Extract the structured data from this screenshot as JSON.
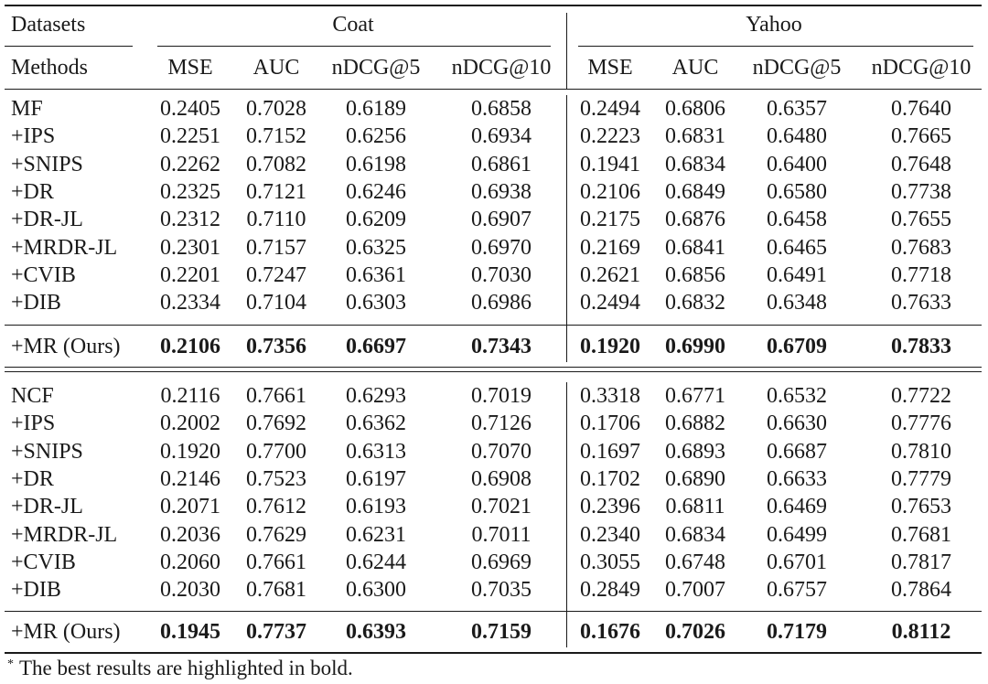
{
  "header": {
    "datasets_label": "Datasets",
    "methods_label": "Methods",
    "groups": [
      "Coat",
      "Yahoo"
    ],
    "metrics": [
      "MSE",
      "AUC",
      "nDCG@5",
      "nDCG@10"
    ]
  },
  "blocks": [
    {
      "rows": [
        {
          "method": "MF",
          "coat": [
            "0.2405",
            "0.7028",
            "0.6189",
            "0.6858"
          ],
          "yahoo": [
            "0.2494",
            "0.6806",
            "0.6357",
            "0.7640"
          ]
        },
        {
          "method": "+IPS",
          "coat": [
            "0.2251",
            "0.7152",
            "0.6256",
            "0.6934"
          ],
          "yahoo": [
            "0.2223",
            "0.6831",
            "0.6480",
            "0.7665"
          ]
        },
        {
          "method": "+SNIPS",
          "coat": [
            "0.2262",
            "0.7082",
            "0.6198",
            "0.6861"
          ],
          "yahoo": [
            "0.1941",
            "0.6834",
            "0.6400",
            "0.7648"
          ]
        },
        {
          "method": "+DR",
          "coat": [
            "0.2325",
            "0.7121",
            "0.6246",
            "0.6938"
          ],
          "yahoo": [
            "0.2106",
            "0.6849",
            "0.6580",
            "0.7738"
          ]
        },
        {
          "method": "+DR-JL",
          "coat": [
            "0.2312",
            "0.7110",
            "0.6209",
            "0.6907"
          ],
          "yahoo": [
            "0.2175",
            "0.6876",
            "0.6458",
            "0.7655"
          ]
        },
        {
          "method": "+MRDR-JL",
          "coat": [
            "0.2301",
            "0.7157",
            "0.6325",
            "0.6970"
          ],
          "yahoo": [
            "0.2169",
            "0.6841",
            "0.6465",
            "0.7683"
          ]
        },
        {
          "method": "+CVIB",
          "coat": [
            "0.2201",
            "0.7247",
            "0.6361",
            "0.7030"
          ],
          "yahoo": [
            "0.2621",
            "0.6856",
            "0.6491",
            "0.7718"
          ]
        },
        {
          "method": "+DIB",
          "coat": [
            "0.2334",
            "0.7104",
            "0.6303",
            "0.6986"
          ],
          "yahoo": [
            "0.2494",
            "0.6832",
            "0.6348",
            "0.7633"
          ]
        }
      ],
      "ours": {
        "method": "+MR (Ours)",
        "coat": [
          "0.2106",
          "0.7356",
          "0.6697",
          "0.7343"
        ],
        "yahoo": [
          "0.1920",
          "0.6990",
          "0.6709",
          "0.7833"
        ]
      }
    },
    {
      "rows": [
        {
          "method": "NCF",
          "coat": [
            "0.2116",
            "0.7661",
            "0.6293",
            "0.7019"
          ],
          "yahoo": [
            "0.3318",
            "0.6771",
            "0.6532",
            "0.7722"
          ]
        },
        {
          "method": "+IPS",
          "coat": [
            "0.2002",
            "0.7692",
            "0.6362",
            "0.7126"
          ],
          "yahoo": [
            "0.1706",
            "0.6882",
            "0.6630",
            "0.7776"
          ]
        },
        {
          "method": "+SNIPS",
          "coat": [
            "0.1920",
            "0.7700",
            "0.6313",
            "0.7070"
          ],
          "yahoo": [
            "0.1697",
            "0.6893",
            "0.6687",
            "0.7810"
          ]
        },
        {
          "method": "+DR",
          "coat": [
            "0.2146",
            "0.7523",
            "0.6197",
            "0.6908"
          ],
          "yahoo": [
            "0.1702",
            "0.6890",
            "0.6633",
            "0.7779"
          ]
        },
        {
          "method": "+DR-JL",
          "coat": [
            "0.2071",
            "0.7612",
            "0.6193",
            "0.7021"
          ],
          "yahoo": [
            "0.2396",
            "0.6811",
            "0.6469",
            "0.7653"
          ]
        },
        {
          "method": "+MRDR-JL",
          "coat": [
            "0.2036",
            "0.7629",
            "0.6231",
            "0.7011"
          ],
          "yahoo": [
            "0.2340",
            "0.6834",
            "0.6499",
            "0.7681"
          ]
        },
        {
          "method": "+CVIB",
          "coat": [
            "0.2060",
            "0.7661",
            "0.6244",
            "0.6969"
          ],
          "yahoo": [
            "0.3055",
            "0.6748",
            "0.6701",
            "0.7817"
          ]
        },
        {
          "method": "+DIB",
          "coat": [
            "0.2030",
            "0.7681",
            "0.6300",
            "0.7035"
          ],
          "yahoo": [
            "0.2849",
            "0.7007",
            "0.6757",
            "0.7864"
          ]
        }
      ],
      "ours": {
        "method": "+MR (Ours)",
        "coat": [
          "0.1945",
          "0.7737",
          "0.6393",
          "0.7159"
        ],
        "yahoo": [
          "0.1676",
          "0.7026",
          "0.7179",
          "0.8112"
        ]
      }
    }
  ],
  "footnote": {
    "mark": "*",
    "text": "The best results are highlighted in bold."
  }
}
